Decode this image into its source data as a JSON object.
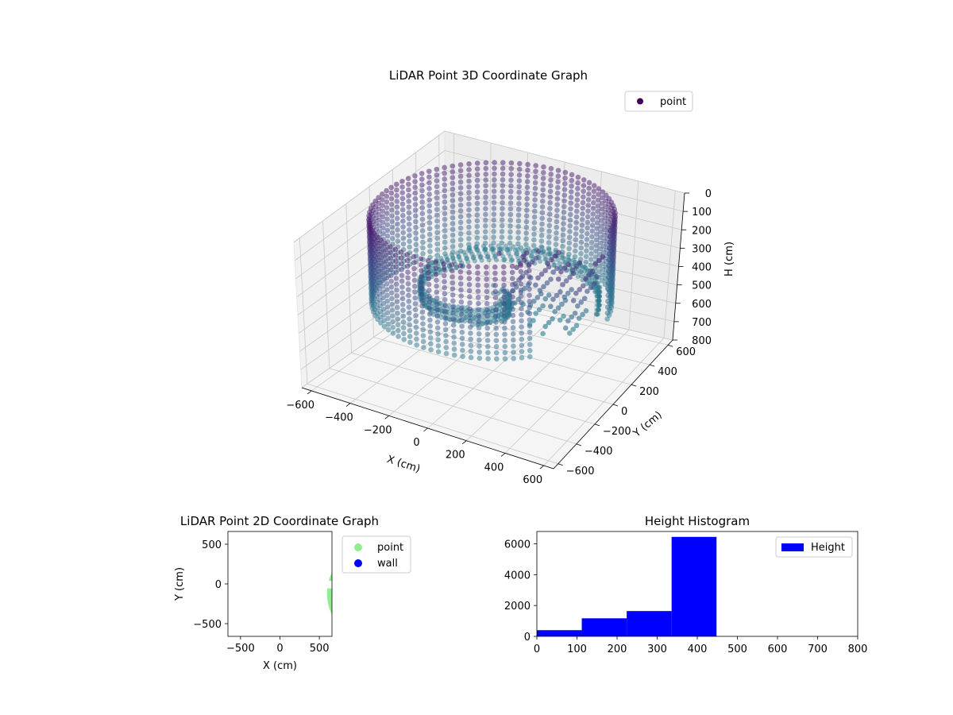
{
  "chart_data": [
    {
      "type": "scatter",
      "title": "LiDAR Point 3D Coordinate Graph",
      "xlabel": "X (cm)",
      "ylabel": "Y (cm)",
      "zlabel": "H (cm)",
      "xticks": [
        "−600",
        "−400",
        "−200",
        "0",
        "200",
        "400",
        "600"
      ],
      "yticks": [
        "−600",
        "−400",
        "−200",
        "0",
        "200",
        "400",
        "600"
      ],
      "zticks": [
        "0",
        "100",
        "200",
        "300",
        "400",
        "500",
        "600",
        "700",
        "800"
      ],
      "xlim": [
        -650,
        650
      ],
      "ylim": [
        -650,
        650
      ],
      "zlim": [
        800,
        0
      ],
      "z_axis_inverted": true,
      "colormap": "viridis",
      "legend": [
        "point"
      ],
      "legend_placement": "top-right",
      "grid": true,
      "series": [
        {
          "name": "point",
          "shape": "cylindrical wall ring with an opening on the +x side",
          "wall_radius": 560,
          "wall_height_range": [
            0,
            450
          ],
          "gap_angle_range_deg": [
            -40,
            10
          ]
        }
      ]
    },
    {
      "type": "scatter",
      "title": "LiDAR Point 2D Coordinate Graph",
      "xlabel": "X (cm)",
      "ylabel": "Y (cm)",
      "xticks": [
        "−500",
        "0",
        "500"
      ],
      "yticks": [
        "−500",
        "0",
        "500"
      ],
      "xlim": [
        -660,
        660
      ],
      "ylim": [
        -660,
        660
      ],
      "legend": [
        "point",
        "wall"
      ],
      "legend_placement": "outside right",
      "grid": false,
      "series": [
        {
          "name": "point",
          "color": "#90ee90",
          "region": "disc of radius ~610 cm with a notch on the right side"
        },
        {
          "name": "wall",
          "color": "#0000ff"
        }
      ]
    },
    {
      "type": "bar",
      "title": "Height Histogram",
      "xlabel": "",
      "ylabel": "",
      "xticks": [
        "0",
        "100",
        "200",
        "300",
        "400",
        "500",
        "600",
        "700",
        "800"
      ],
      "yticks": [
        "0",
        "2000",
        "4000",
        "6000"
      ],
      "xlim": [
        0,
        800
      ],
      "ylim": [
        0,
        6800
      ],
      "legend": [
        "Height"
      ],
      "legend_placement": "top-right",
      "color": "#0000ff",
      "bins": [
        {
          "x0": 0,
          "x1": 112,
          "count": 400
        },
        {
          "x0": 112,
          "x1": 224,
          "count": 1170
        },
        {
          "x0": 224,
          "x1": 336,
          "count": 1640
        },
        {
          "x0": 336,
          "x1": 448,
          "count": 6450
        },
        {
          "x0": 448,
          "x1": 560,
          "count": 0
        },
        {
          "x0": 560,
          "x1": 672,
          "count": 0
        },
        {
          "x0": 672,
          "x1": 784,
          "count": 0
        }
      ]
    }
  ]
}
